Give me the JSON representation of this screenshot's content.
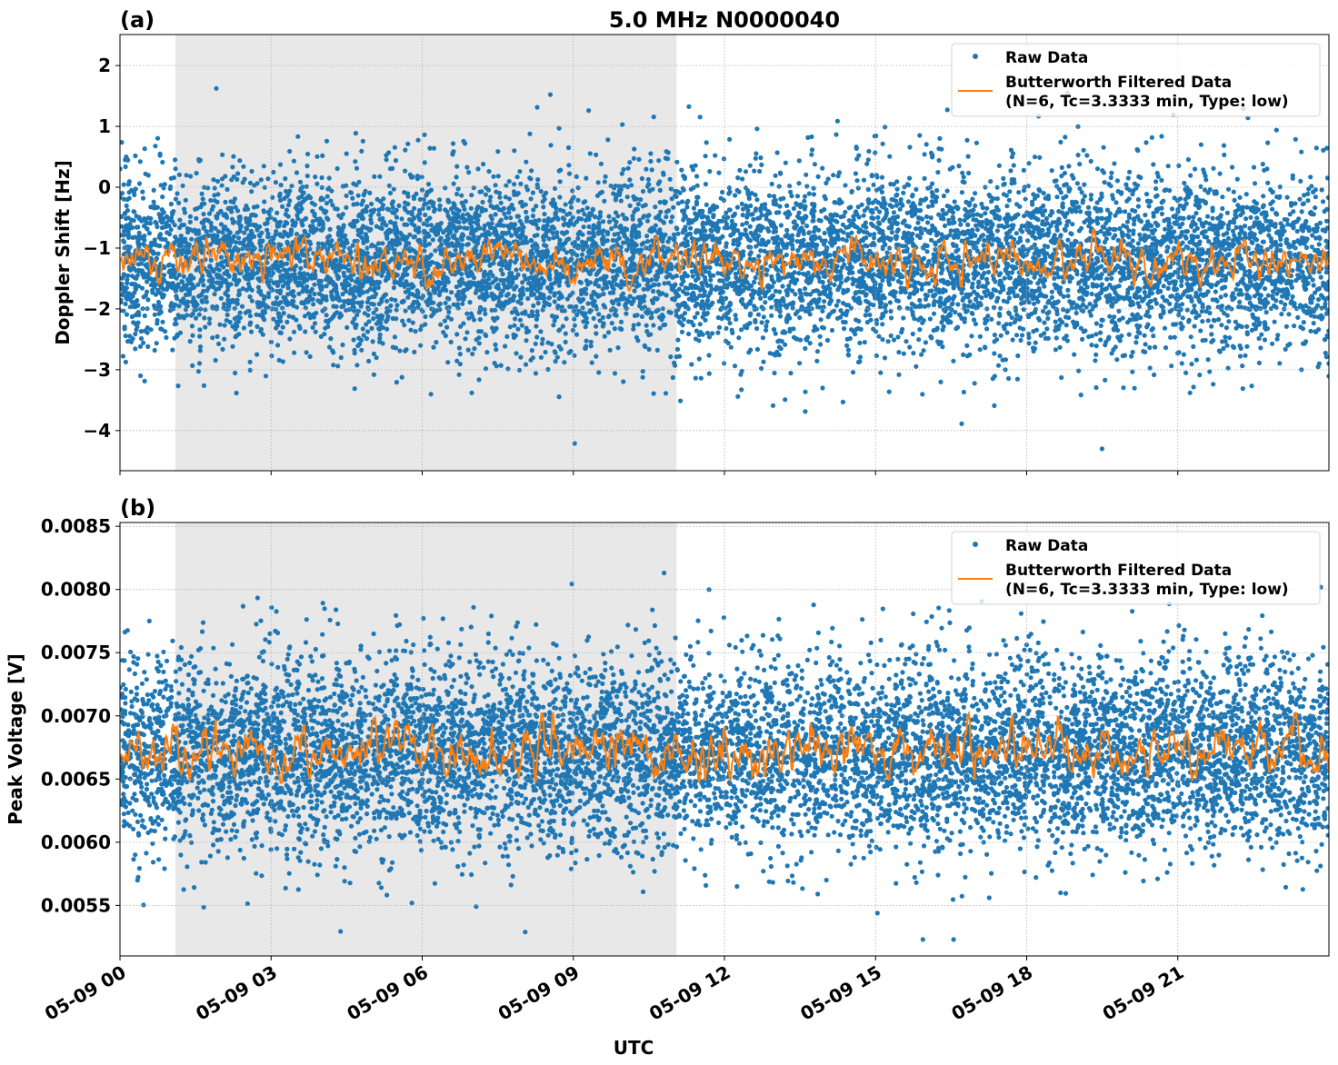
{
  "chart_data": [
    {
      "type": "scatter+line",
      "panel_label": "(a)",
      "title": "5.0 MHz N0000040",
      "xlabel": "",
      "ylabel": "Doppler Shift [Hz]",
      "xlim_hours": [
        0,
        24
      ],
      "ylim": [
        -4.66,
        2.51
      ],
      "yticks": [
        2,
        1,
        0,
        -1,
        -2,
        -3,
        -4
      ],
      "ytick_labels": [
        "2",
        "1",
        "0",
        "−1",
        "−2",
        "−3",
        "−4"
      ],
      "grid": true,
      "legend_placement": "top-right",
      "shaded_interval_utc": [
        "05-09 01:06",
        "05-09 11:03"
      ],
      "series": [
        {
          "name": "Raw Data",
          "kind": "scatter",
          "color": "#1f77b4",
          "mean": -1.2,
          "std": 0.72,
          "range": [
            -4.3,
            2.2
          ]
        },
        {
          "name": "Butterworth Filtered Data\n(N=6, Tc=3.3333 min, Type: low)",
          "kind": "line",
          "color": "#ff7f0e",
          "mean": -1.2,
          "std": 0.12,
          "range": [
            -1.7,
            -0.7
          ]
        }
      ],
      "legend": [
        "Raw Data",
        "Butterworth Filtered Data",
        "(N=6, Tc=3.3333 min, Type: low)"
      ]
    },
    {
      "type": "scatter+line",
      "panel_label": "(b)",
      "title": "",
      "xlabel": "UTC",
      "ylabel": "Peak Voltage [V]",
      "xlim_hours": [
        0,
        24
      ],
      "ylim": [
        0.0051,
        0.00853
      ],
      "yticks": [
        0.0085,
        0.008,
        0.0075,
        0.007,
        0.0065,
        0.006,
        0.0055
      ],
      "ytick_labels": [
        "0.0085",
        "0.0080",
        "0.0075",
        "0.0070",
        "0.0065",
        "0.0060",
        "0.0055"
      ],
      "xticks_hours": [
        0,
        3,
        6,
        9,
        12,
        15,
        18,
        21
      ],
      "xtick_labels": [
        "05-09 00",
        "05-09 03",
        "05-09 06",
        "05-09 09",
        "05-09 12",
        "05-09 15",
        "05-09 18",
        "05-09 21"
      ],
      "grid": true,
      "legend_placement": "top-right",
      "shaded_interval_utc": [
        "05-09 01:06",
        "05-09 11:03"
      ],
      "series": [
        {
          "name": "Raw Data",
          "kind": "scatter",
          "color": "#1f77b4",
          "mean": 0.00671,
          "std": 0.00037,
          "range": [
            0.00523,
            0.00837
          ]
        },
        {
          "name": "Butterworth Filtered Data\n(N=6, Tc=3.3333 min, Type: low)",
          "kind": "line",
          "color": "#ff7f0e",
          "mean": 0.00672,
          "std": 8e-05,
          "range": [
            0.00647,
            0.00702
          ]
        }
      ],
      "legend": [
        "Raw Data",
        "Butterworth Filtered Data",
        "(N=6, Tc=3.3333 min, Type: low)"
      ]
    }
  ]
}
